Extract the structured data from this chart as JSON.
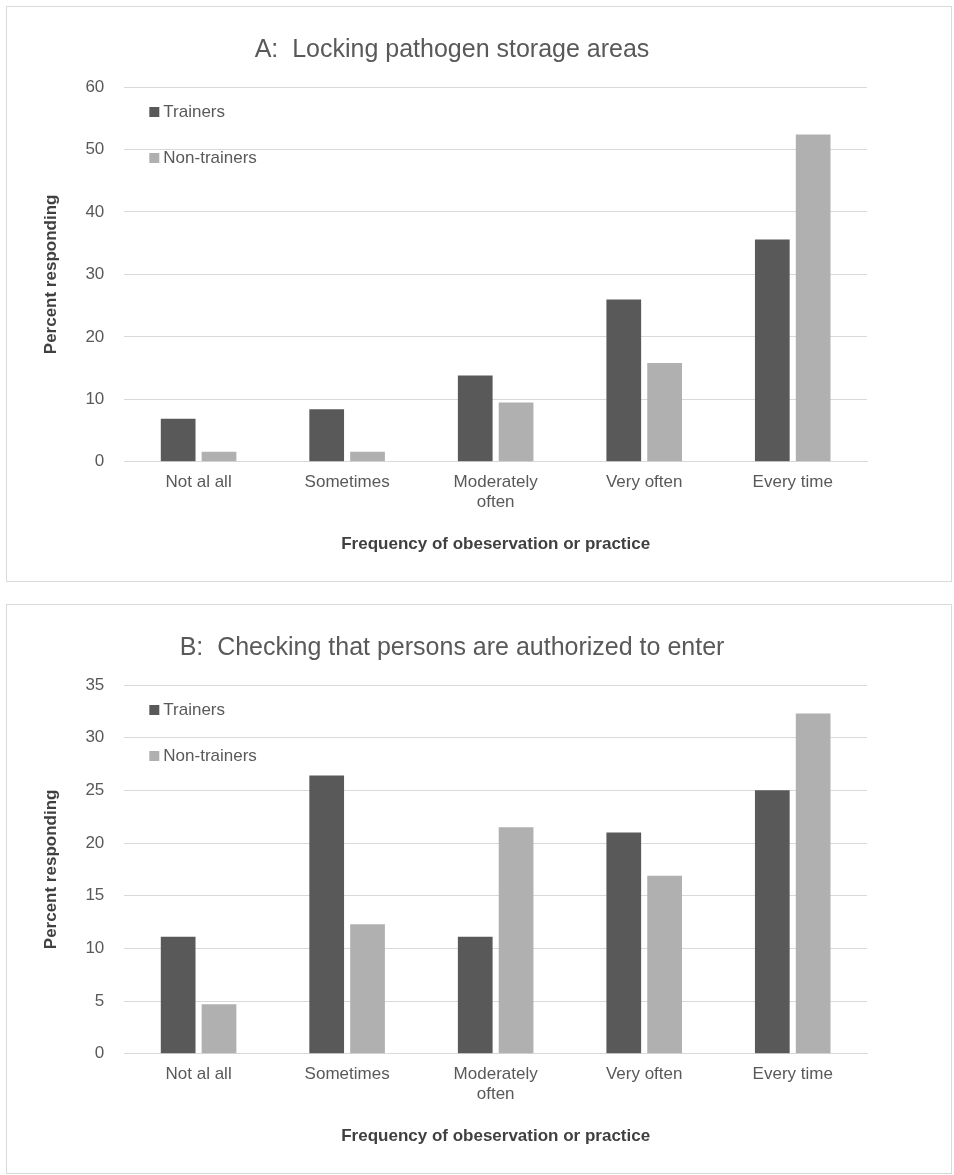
{
  "chart_data": [
    {
      "type": "bar",
      "title": "A:  Locking pathogen storage areas",
      "xlabel": "Frequency of obeservation or practice",
      "ylabel": "Percent responding",
      "categories": [
        "Not al all",
        "Sometimes",
        "Moderately often",
        "Very often",
        "Every time"
      ],
      "series": [
        {
          "name": "Trainers",
          "color": "#595959",
          "values": [
            6.9,
            8.4,
            13.8,
            26,
            35.6
          ]
        },
        {
          "name": "Non-trainers",
          "color": "#b0b0b0",
          "values": [
            1.6,
            1.6,
            9.5,
            15.8,
            52.4
          ]
        }
      ],
      "ylim": [
        0,
        60
      ],
      "yticks": [
        0,
        10,
        20,
        30,
        40,
        50,
        60
      ],
      "grid": "y",
      "legend": "top left"
    },
    {
      "type": "bar",
      "title": "B:  Checking that persons are authorized to enter",
      "xlabel": "Frequency of obeservation or practice",
      "ylabel": "Percent responding",
      "categories": [
        "Not al all",
        "Sometimes",
        "Moderately often",
        "Very often",
        "Every time"
      ],
      "series": [
        {
          "name": "Trainers",
          "color": "#595959",
          "values": [
            11.1,
            26.4,
            11.1,
            21,
            25
          ]
        },
        {
          "name": "Non-trainers",
          "color": "#b0b0b0",
          "values": [
            4.7,
            12.3,
            21.5,
            16.9,
            32.3
          ]
        }
      ],
      "ylim": [
        0,
        35
      ],
      "yticks": [
        0,
        5,
        10,
        15,
        20,
        25,
        30,
        35
      ],
      "grid": "y",
      "legend": "top left"
    }
  ]
}
